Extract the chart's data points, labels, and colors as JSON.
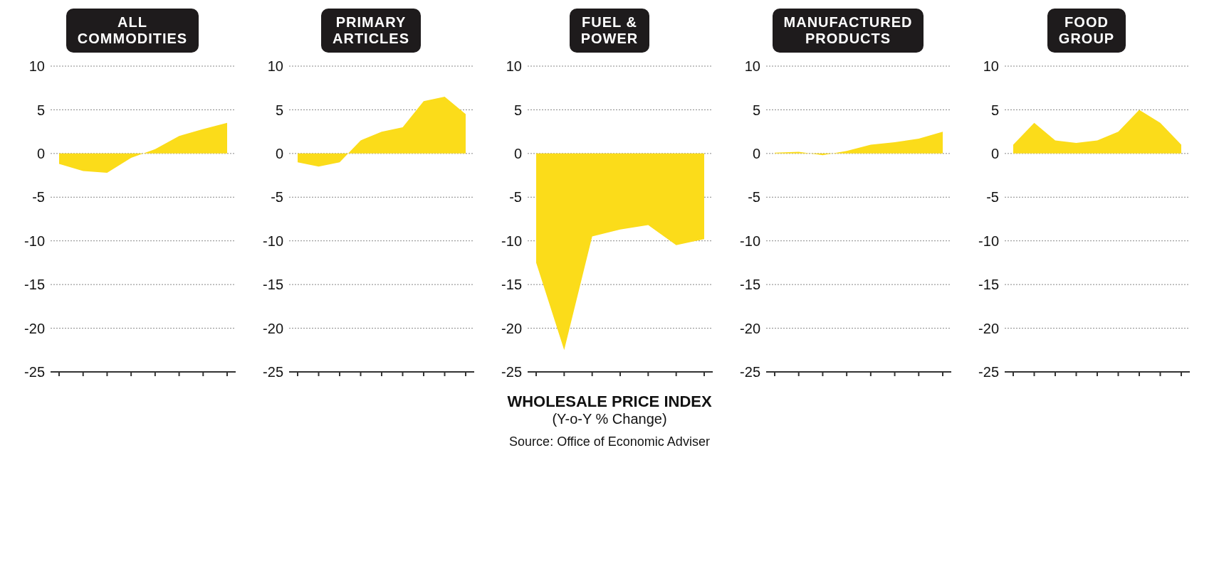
{
  "chart_data": [
    {
      "type": "area",
      "title": "ALL COMMODITIES",
      "categories": [
        null,
        null,
        null,
        null,
        null,
        null,
        null,
        null
      ],
      "values": [
        -1.2,
        -2,
        -2.2,
        -0.5,
        0.5,
        2,
        2.8,
        3.5
      ],
      "color": "#fbdc1a",
      "ylim": [
        -25,
        10
      ],
      "yticks": [
        -25,
        -20,
        -15,
        -10,
        -5,
        0,
        5,
        10
      ],
      "grid": "y",
      "tick_labels": "y"
    },
    {
      "type": "area",
      "title": "PRIMARY ARTICLES",
      "categories": [
        null,
        null,
        null,
        null,
        null,
        null,
        null,
        null,
        null
      ],
      "values": [
        -1,
        -1.5,
        -1,
        1.5,
        2.5,
        3,
        6,
        6.5,
        4.5
      ],
      "color": "#fbdc1a",
      "ylim": [
        -25,
        10
      ],
      "yticks": [
        -25,
        -20,
        -15,
        -10,
        -5,
        0,
        5,
        10
      ],
      "grid": "y",
      "tick_labels": "y"
    },
    {
      "type": "area",
      "title": "FUEL & POWER",
      "categories": [
        null,
        null,
        null,
        null,
        null,
        null,
        null
      ],
      "values": [
        -12.5,
        -22.5,
        -9.5,
        -8.7,
        -8.2,
        -10.5,
        -9.8
      ],
      "color": "#fbdc1a",
      "ylim": [
        -25,
        10
      ],
      "yticks": [
        -25,
        -20,
        -15,
        -10,
        -5,
        0,
        5,
        10
      ],
      "grid": "y",
      "tick_labels": "y"
    },
    {
      "type": "area",
      "title": "MANUFACTURED PRODUCTS",
      "categories": [
        null,
        null,
        null,
        null,
        null,
        null,
        null,
        null
      ],
      "values": [
        0.1,
        0.2,
        -0.2,
        0.3,
        1,
        1.3,
        1.7,
        2.5
      ],
      "color": "#fbdc1a",
      "ylim": [
        -25,
        10
      ],
      "yticks": [
        -25,
        -20,
        -15,
        -10,
        -5,
        0,
        5,
        10
      ],
      "grid": "y",
      "tick_labels": "y"
    },
    {
      "type": "area",
      "title": "FOOD GROUP",
      "categories": [
        null,
        null,
        null,
        null,
        null,
        null,
        null,
        null,
        null
      ],
      "values": [
        1,
        3.5,
        1.5,
        1.2,
        1.5,
        2.5,
        5,
        3.5,
        1
      ],
      "color": "#fbdc1a",
      "ylim": [
        -25,
        10
      ],
      "yticks": [
        -25,
        -20,
        -15,
        -10,
        -5,
        0,
        5,
        10
      ],
      "grid": "y",
      "tick_labels": "y"
    },
    {
      "type": "other",
      "title": "WHOLESALE PRICE INDEX",
      "subtitle": "(Y-o-Y % Change)",
      "annotations": [
        "Source: Office of Economic Adviser"
      ]
    }
  ]
}
